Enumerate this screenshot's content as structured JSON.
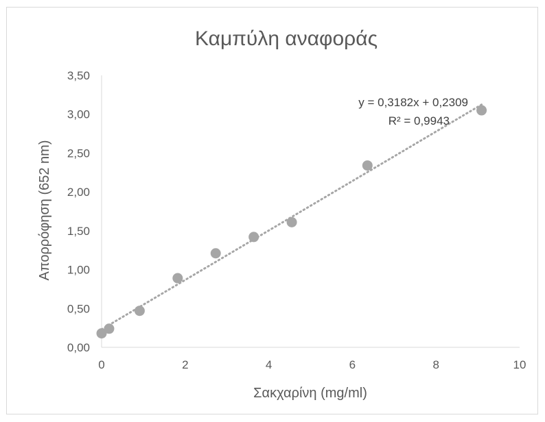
{
  "chart_data": {
    "type": "scatter",
    "title": "Καμπύλη αναφοράς",
    "xlabel": "Σακχαρίνη (mg/ml)",
    "ylabel": "Απορρόφηση (652 nm)",
    "xlim": [
      0,
      10
    ],
    "ylim": [
      0,
      3.5
    ],
    "x_ticks": [
      "0",
      "2",
      "4",
      "6",
      "8",
      "10"
    ],
    "y_ticks": [
      "0,00",
      "0,50",
      "1,00",
      "1,50",
      "2,00",
      "2,50",
      "3,00",
      "3,50"
    ],
    "grid": false,
    "series": [
      {
        "x": [
          0,
          0.18,
          0.91,
          1.82,
          2.73,
          3.64,
          4.55,
          6.36,
          9.09
        ],
        "y": [
          0.18,
          0.24,
          0.47,
          0.89,
          1.21,
          1.42,
          1.61,
          2.34,
          3.05
        ],
        "color": "#a6a6a6"
      }
    ],
    "trendline": {
      "slope": 0.3182,
      "intercept": 0.2309,
      "style": "dotted",
      "color": "#a6a6a6",
      "equation_label": "y = 0,3182x + 0,2309",
      "r2_label": "R² = 0,9943"
    }
  }
}
